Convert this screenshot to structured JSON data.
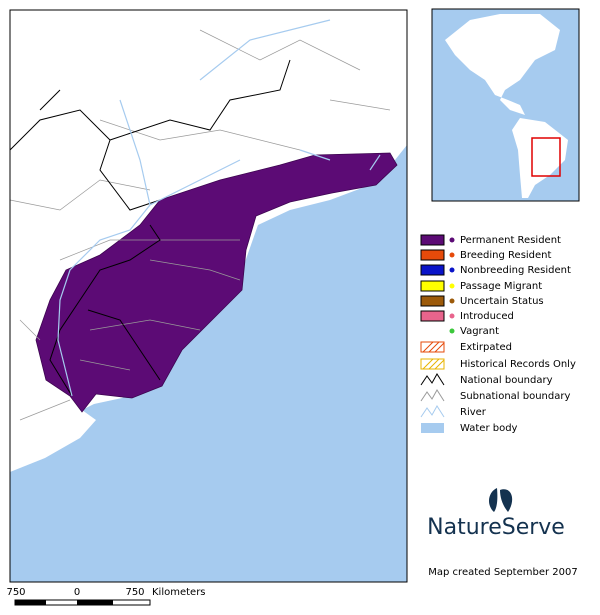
{
  "legend": {
    "items": [
      "Permanent Resident",
      "Breeding Resident",
      "Nonbreeding Resident",
      "Passage Migrant",
      "Uncertain Status",
      "Introduced",
      "Vagrant",
      "Extirpated",
      "Historical Records Only",
      "National boundary",
      "Subnational boundary",
      "River",
      "Water body"
    ]
  },
  "logo": "NatureServe",
  "credit": "Map created September 2007",
  "scale": {
    "labels": [
      "750",
      "0",
      "750"
    ],
    "unit": "Kilometers"
  }
}
